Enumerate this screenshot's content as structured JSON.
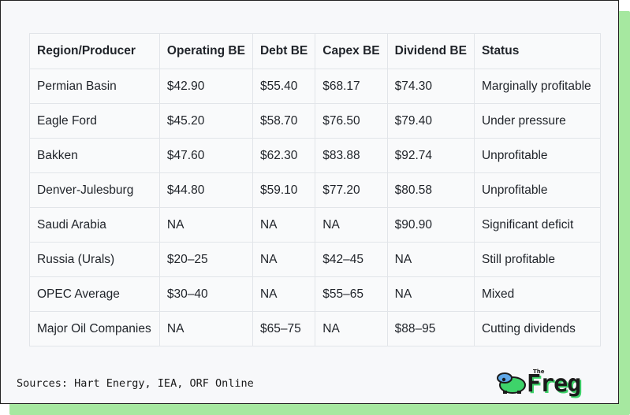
{
  "table": {
    "headers": [
      "Region/Producer",
      "Operating BE",
      "Debt BE",
      "Capex BE",
      "Dividend BE",
      "Status"
    ],
    "rows": [
      [
        "Permian Basin",
        "$42.90",
        "$55.40",
        "$68.17",
        "$74.30",
        "Marginally profitable"
      ],
      [
        "Eagle Ford",
        "$45.20",
        "$58.70",
        "$76.50",
        "$79.40",
        "Under pressure"
      ],
      [
        "Bakken",
        "$47.60",
        "$62.30",
        "$83.88",
        "$92.74",
        "Unprofitable"
      ],
      [
        "Denver-Julesburg",
        "$44.80",
        "$59.10",
        "$77.20",
        "$80.58",
        "Unprofitable"
      ],
      [
        "Saudi Arabia",
        "NA",
        "NA",
        "NA",
        "$90.90",
        "Significant deficit"
      ],
      [
        "Russia (Urals)",
        "$20–25",
        "NA",
        "$42–45",
        "NA",
        "Still profitable"
      ],
      [
        "OPEC Average",
        "$30–40",
        "NA",
        "$55–65",
        "NA",
        "Mixed"
      ],
      [
        "Major Oil Companies",
        "NA",
        "$65–75",
        "NA",
        "$88–95",
        "Cutting dividends"
      ]
    ]
  },
  "footer": {
    "sources": "Sources: Hart Energy, IEA, ORF Online"
  },
  "logo": {
    "small": "The",
    "word": "Freg",
    "icon": "frog-icon"
  }
}
